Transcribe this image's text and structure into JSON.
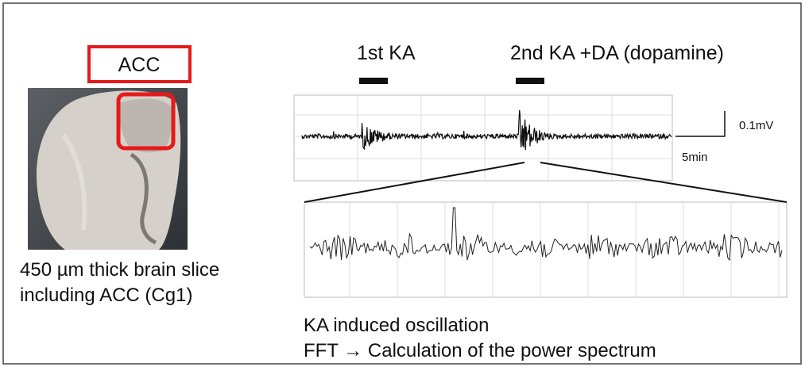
{
  "labels": {
    "region": "ACC",
    "first_application": "1st KA",
    "second_application": "2nd KA +DA (dopamine)"
  },
  "scale_bar": {
    "amplitude": "0.1mV",
    "time": "5min"
  },
  "slice_caption": [
    "450 µm thick brain slice",
    "including ACC (Cg1)"
  ],
  "trace_caption": [
    "KA induced oscillation",
    "FFT → Calculation of the power spectrum"
  ]
}
